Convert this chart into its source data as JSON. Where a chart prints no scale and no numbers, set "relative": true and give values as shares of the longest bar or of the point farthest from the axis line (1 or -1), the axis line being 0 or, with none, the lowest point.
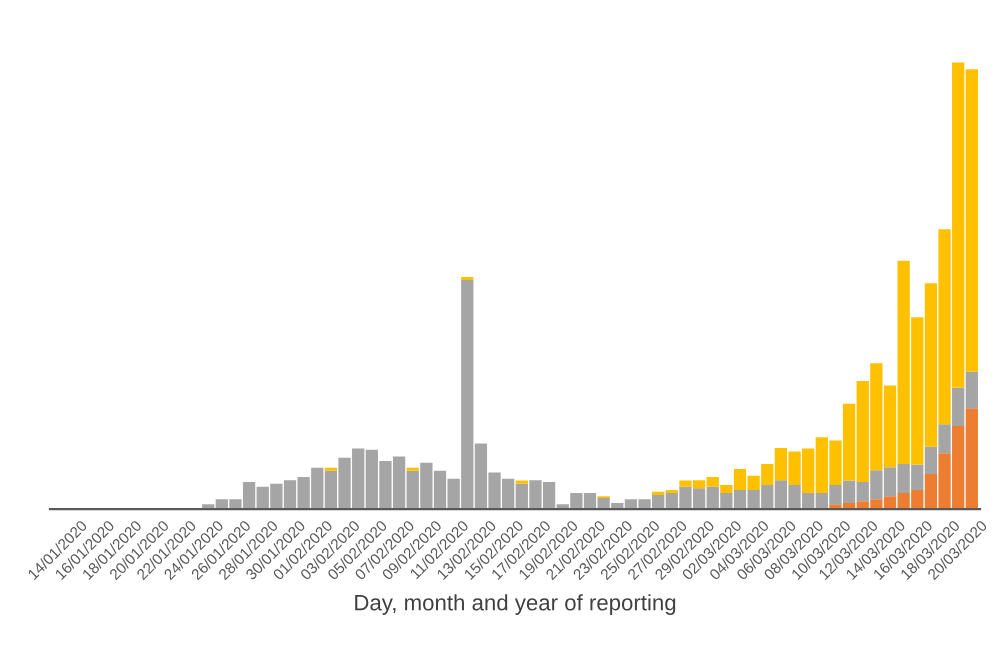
{
  "chart_data": {
    "type": "bar",
    "stacked": true,
    "relative": true,
    "grid": false,
    "legend": false,
    "xlabel": "Day, month and year of reporting",
    "categories": [
      "14/01/2020",
      null,
      "16/01/2020",
      null,
      "18/01/2020",
      null,
      "20/01/2020",
      null,
      "22/01/2020",
      null,
      "24/01/2020",
      null,
      "26/01/2020",
      null,
      "28/01/2020",
      null,
      "30/01/2020",
      null,
      "01/02/2020",
      null,
      "03/02/2020",
      null,
      "05/02/2020",
      null,
      "07/02/2020",
      null,
      "09/02/2020",
      null,
      "11/02/2020",
      null,
      "13/02/2020",
      null,
      "15/02/2020",
      null,
      "17/02/2020",
      null,
      "19/02/2020",
      null,
      "21/02/2020",
      null,
      "23/02/2020",
      null,
      "25/02/2020",
      null,
      "27/02/2020",
      null,
      "29/02/2020",
      null,
      "02/03/2020",
      null,
      "04/03/2020",
      null,
      "06/03/2020",
      null,
      "08/03/2020",
      null,
      "10/03/2020",
      null,
      "12/03/2020",
      null,
      "14/03/2020",
      null,
      "16/03/2020",
      null,
      "18/03/2020",
      null,
      "20/03/2020",
      null
    ],
    "series": [
      {
        "color": "#ed7d31",
        "values": [
          null,
          null,
          null,
          null,
          null,
          null,
          null,
          null,
          null,
          null,
          null,
          null,
          null,
          null,
          null,
          null,
          null,
          null,
          null,
          null,
          null,
          null,
          null,
          null,
          null,
          null,
          null,
          null,
          null,
          null,
          null,
          null,
          null,
          null,
          null,
          null,
          null,
          null,
          null,
          null,
          null,
          null,
          null,
          null,
          null,
          null,
          null,
          null,
          null,
          null,
          null,
          null,
          null,
          null,
          null,
          null,
          null,
          0.011,
          0.014,
          0.018,
          0.022,
          0.029,
          0.036,
          0.043,
          0.079,
          0.125,
          0.186,
          0.226
        ]
      },
      {
        "color": "#a5a5a5",
        "values": [
          null,
          null,
          null,
          null,
          null,
          null,
          null,
          null,
          null,
          null,
          null,
          0.011,
          0.022,
          0.022,
          0.061,
          0.05,
          0.057,
          0.065,
          0.072,
          0.093,
          0.086,
          0.115,
          0.136,
          0.133,
          0.108,
          0.118,
          0.086,
          0.104,
          0.086,
          0.068,
          0.513,
          0.147,
          0.082,
          0.068,
          0.057,
          0.065,
          0.061,
          0.011,
          0.036,
          0.036,
          0.025,
          0.014,
          0.022,
          0.022,
          0.032,
          0.036,
          0.05,
          0.047,
          0.05,
          0.036,
          0.043,
          0.043,
          0.054,
          0.065,
          0.054,
          0.036,
          0.036,
          0.043,
          0.05,
          0.043,
          0.065,
          0.065,
          0.065,
          0.057,
          0.061,
          0.065,
          0.086,
          0.082
        ]
      },
      {
        "color": "#ffc000",
        "values": [
          null,
          null,
          null,
          null,
          null,
          null,
          null,
          null,
          null,
          null,
          null,
          null,
          null,
          null,
          null,
          null,
          null,
          null,
          null,
          null,
          0.007,
          null,
          null,
          null,
          null,
          null,
          0.007,
          null,
          null,
          null,
          0.007,
          null,
          null,
          null,
          0.007,
          null,
          null,
          null,
          null,
          null,
          0.004,
          null,
          null,
          null,
          0.007,
          0.007,
          0.014,
          0.018,
          0.022,
          0.018,
          0.047,
          0.032,
          0.047,
          0.072,
          0.075,
          0.1,
          0.125,
          0.1,
          0.172,
          0.226,
          0.24,
          0.183,
          0.455,
          0.33,
          0.366,
          0.437,
          0.728,
          0.677
        ]
      }
    ]
  }
}
